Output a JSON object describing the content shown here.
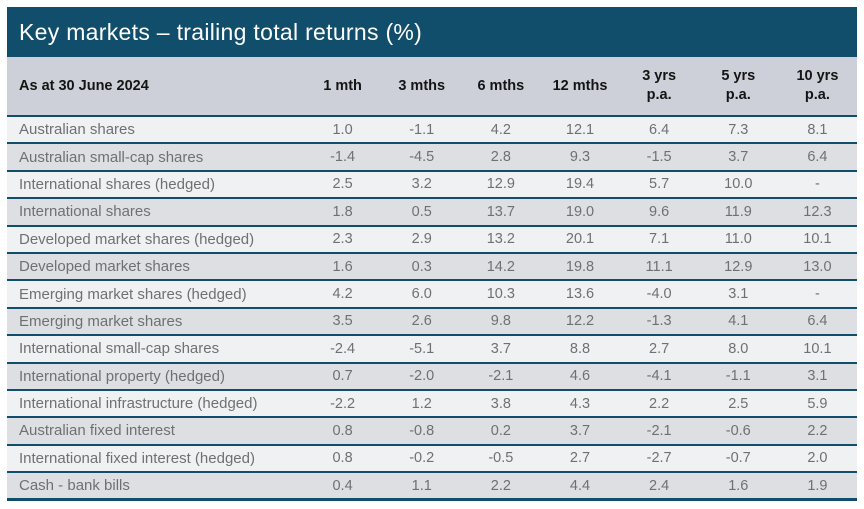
{
  "title_bar": {
    "title": "Key markets – trailing total returns (%)"
  },
  "table": {
    "columns": [
      {
        "line1": "1 mth",
        "line2": ""
      },
      {
        "line1": "3 mths",
        "line2": ""
      },
      {
        "line1": "6 mths",
        "line2": ""
      },
      {
        "line1": "12 mths",
        "line2": ""
      },
      {
        "line1": "3 yrs",
        "line2": "p.a."
      },
      {
        "line1": "5 yrs",
        "line2": "p.a."
      },
      {
        "line1": "10 yrs",
        "line2": "p.a."
      }
    ]
  },
  "colors": {
    "title_bar_bg": "#114e6c",
    "title_text": "#ffffff",
    "header_bg": "#cdd0d8",
    "separator": "#114e6c",
    "row_light": "#f0f1f3",
    "row_dark": "#dedfe3",
    "body_text": "#6f7073"
  },
  "chart_data": {
    "type": "table",
    "title": "Key markets – trailing total returns (%)",
    "date_label": "As at 30 June 2024",
    "columns": [
      "1 mth",
      "3 mths",
      "6 mths",
      "12 mths",
      "3 yrs p.a.",
      "5 yrs p.a.",
      "10 yrs p.a."
    ],
    "rows": [
      {
        "label": "Australian shares",
        "values": [
          "1.0",
          "-1.1",
          "4.2",
          "12.1",
          "6.4",
          "7.3",
          "8.1"
        ]
      },
      {
        "label": "Australian small-cap shares",
        "values": [
          "-1.4",
          "-4.5",
          "2.8",
          "9.3",
          "-1.5",
          "3.7",
          "6.4"
        ]
      },
      {
        "label": "International shares (hedged)",
        "values": [
          "2.5",
          "3.2",
          "12.9",
          "19.4",
          "5.7",
          "10.0",
          "-"
        ]
      },
      {
        "label": "International shares",
        "values": [
          "1.8",
          "0.5",
          "13.7",
          "19.0",
          "9.6",
          "11.9",
          "12.3"
        ]
      },
      {
        "label": "Developed market shares (hedged)",
        "values": [
          "2.3",
          "2.9",
          "13.2",
          "20.1",
          "7.1",
          "11.0",
          "10.1"
        ]
      },
      {
        "label": "Developed market shares",
        "values": [
          "1.6",
          "0.3",
          "14.2",
          "19.8",
          "11.1",
          "12.9",
          "13.0"
        ]
      },
      {
        "label": "Emerging market shares (hedged)",
        "values": [
          "4.2",
          "6.0",
          "10.3",
          "13.6",
          "-4.0",
          "3.1",
          "-"
        ]
      },
      {
        "label": "Emerging market shares",
        "values": [
          "3.5",
          "2.6",
          "9.8",
          "12.2",
          "-1.3",
          "4.1",
          "6.4"
        ]
      },
      {
        "label": "International small-cap shares",
        "values": [
          "-2.4",
          "-5.1",
          "3.7",
          "8.8",
          "2.7",
          "8.0",
          "10.1"
        ]
      },
      {
        "label": "International property (hedged)",
        "values": [
          "0.7",
          "-2.0",
          "-2.1",
          "4.6",
          "-4.1",
          "-1.1",
          "3.1"
        ]
      },
      {
        "label": "International infrastructure (hedged)",
        "values": [
          "-2.2",
          "1.2",
          "3.8",
          "4.3",
          "2.2",
          "2.5",
          "5.9"
        ]
      },
      {
        "label": "Australian fixed interest",
        "values": [
          "0.8",
          "-0.8",
          "0.2",
          "3.7",
          "-2.1",
          "-0.6",
          "2.2"
        ]
      },
      {
        "label": "International fixed interest (hedged)",
        "values": [
          "0.8",
          "-0.2",
          "-0.5",
          "2.7",
          "-2.7",
          "-0.7",
          "2.0"
        ]
      },
      {
        "label": "Cash - bank bills",
        "values": [
          "0.4",
          "1.1",
          "2.2",
          "4.4",
          "2.4",
          "1.6",
          "1.9"
        ]
      }
    ]
  }
}
